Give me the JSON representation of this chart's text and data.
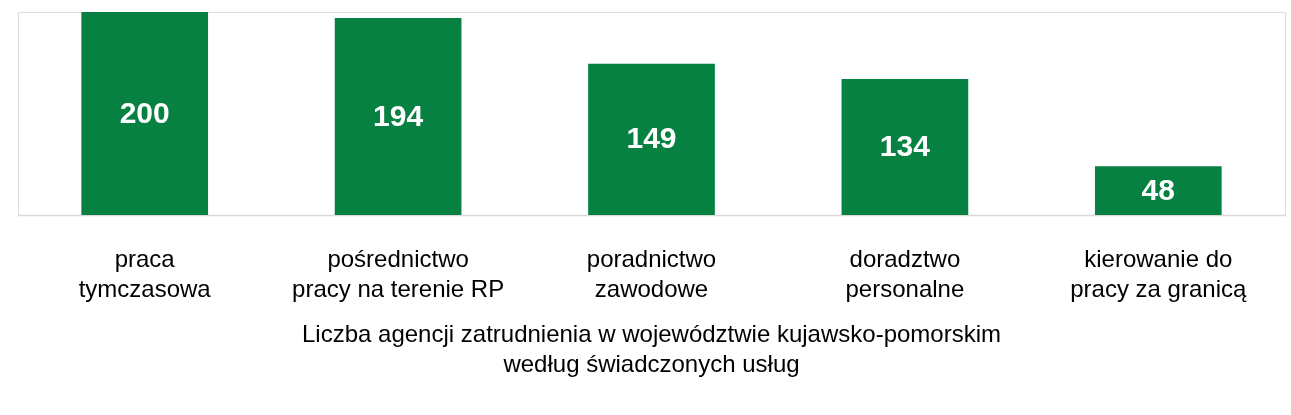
{
  "chart_data": {
    "type": "bar",
    "title": "Liczba agencji zatrudnienia w województwie kujawsko-pomorskim\nwedług świadczonych usług",
    "categories": [
      "praca\ntymczasowa",
      "pośrednictwo\npracy na terenie RP",
      "poradnictwo\nzawodowe",
      "doradztwo\npersonalne",
      "kierowanie do\npracy za granicą"
    ],
    "values": [
      200,
      194,
      149,
      134,
      48
    ],
    "color": "#078142",
    "data_labels": true
  }
}
